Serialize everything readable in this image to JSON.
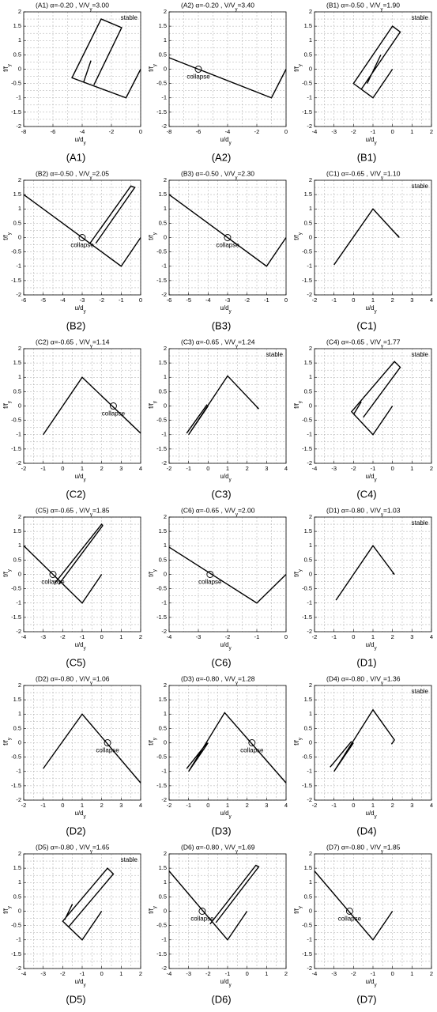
{
  "chart_data": [
    {
      "type": "line",
      "title": "(A1) α=-0.20 , V/V",
      "title_subscript": "y",
      "title_value": "=3.00",
      "xlabel": "u/d",
      "ylabel": "f/f",
      "label_subscript": "y",
      "caption": "(A1)",
      "xlim": [
        -8,
        0
      ],
      "xticks": [
        -8,
        -6,
        -4,
        -2,
        0
      ],
      "ylim": [
        -2,
        2
      ],
      "yticks": [
        -2,
        -1.5,
        -1,
        -0.5,
        0,
        0.5,
        1,
        1.5,
        2
      ],
      "grid": true,
      "color": "#000000",
      "x": [
        0,
        -1,
        -4.7,
        -2.7,
        -1.3,
        -3.2,
        null,
        -3.4,
        -3.9
      ],
      "y": [
        0,
        -1,
        -0.3,
        1.75,
        1.45,
        -0.55,
        null,
        0.3,
        -0.45
      ],
      "annotation": "stable"
    },
    {
      "type": "line",
      "title": "(A2) α=-0.20 , V/V",
      "title_subscript": "y",
      "title_value": "=3.40",
      "xlabel": "u/d",
      "ylabel": "f/f",
      "label_subscript": "y",
      "caption": "(A2)",
      "xlim": [
        -8,
        0
      ],
      "xticks": [
        -8,
        -6,
        -4,
        -2,
        0
      ],
      "ylim": [
        -2,
        2
      ],
      "yticks": [
        -2,
        -1.5,
        -1,
        -0.5,
        0,
        0.5,
        1,
        1.5,
        2
      ],
      "grid": true,
      "color": "#000000",
      "x": [
        -8,
        -1,
        0
      ],
      "y": [
        0.4,
        -1,
        0
      ],
      "annotation": "collapse",
      "marker_x": -6,
      "marker_y": 0
    },
    {
      "type": "line",
      "title": "(B1) α=-0.50 , V/V",
      "title_subscript": "y",
      "title_value": "=1.90",
      "xlabel": "u/d",
      "ylabel": "f/f",
      "label_subscript": "y",
      "caption": "(B1)",
      "xlim": [
        -4,
        2
      ],
      "xticks": [
        -4,
        -3,
        -2,
        -1,
        0,
        1,
        2
      ],
      "ylim": [
        -2,
        2
      ],
      "yticks": [
        -2,
        -1.5,
        -1,
        -0.5,
        0,
        0.5,
        1,
        1.5,
        2
      ],
      "grid": true,
      "color": "#000000",
      "x": [
        0,
        -1,
        -2,
        0,
        0.4,
        -1.6,
        null,
        -0.6,
        -1.3
      ],
      "y": [
        0,
        -1,
        -0.5,
        1.5,
        1.3,
        -0.7,
        null,
        0.5,
        -0.5
      ],
      "annotation": "stable"
    },
    {
      "type": "line",
      "title": "(B2) α=-0.50 , V/V",
      "title_subscript": "y",
      "title_value": "=2.05",
      "xlabel": "u/d",
      "ylabel": "f/f",
      "label_subscript": "y",
      "caption": "(B2)",
      "xlim": [
        -6,
        0
      ],
      "xticks": [
        -6,
        -5,
        -4,
        -3,
        -2,
        -1,
        0
      ],
      "ylim": [
        -2,
        2
      ],
      "yticks": [
        -2,
        -1.5,
        -1,
        -0.5,
        0,
        0.5,
        1,
        1.5,
        2
      ],
      "grid": true,
      "color": "#000000",
      "x": [
        -6,
        -1,
        0,
        null,
        -2.6,
        -0.5,
        -0.3,
        -2.3
      ],
      "y": [
        1.5,
        -1,
        0,
        null,
        -0.2,
        1.8,
        1.75,
        -0.2
      ],
      "annotation": "collapse",
      "marker_x": -3,
      "marker_y": 0
    },
    {
      "type": "line",
      "title": "(B3) α=-0.50 , V/V",
      "title_subscript": "y",
      "title_value": "=2.30",
      "xlabel": "u/d",
      "ylabel": "f/f",
      "label_subscript": "y",
      "caption": "(B3)",
      "xlim": [
        -6,
        0
      ],
      "xticks": [
        -6,
        -5,
        -4,
        -3,
        -2,
        -1,
        0
      ],
      "ylim": [
        -2,
        2
      ],
      "yticks": [
        -2,
        -1.5,
        -1,
        -0.5,
        0,
        0.5,
        1,
        1.5,
        2
      ],
      "grid": true,
      "color": "#000000",
      "x": [
        -6,
        -1,
        0
      ],
      "y": [
        1.5,
        -1,
        0
      ],
      "annotation": "collapse",
      "marker_x": -3,
      "marker_y": 0
    },
    {
      "type": "line",
      "title": "(C1) α=-0.65 , V/V",
      "title_subscript": "y",
      "title_value": "=1.10",
      "xlabel": "u/d",
      "ylabel": "f/f",
      "label_subscript": "y",
      "caption": "(C1)",
      "xlim": [
        -2,
        4
      ],
      "xticks": [
        -2,
        -1,
        0,
        1,
        2,
        3,
        4
      ],
      "ylim": [
        -2,
        2
      ],
      "yticks": [
        -2,
        -1.5,
        -1,
        -0.5,
        0,
        0.5,
        1,
        1.5,
        2
      ],
      "grid": true,
      "color": "#000000",
      "x": [
        -1,
        1,
        2.35,
        2.25
      ],
      "y": [
        -0.95,
        1,
        0,
        0.1
      ],
      "annotation": "stable"
    },
    {
      "type": "line",
      "title": "(C2) α=-0.65 , V/V",
      "title_subscript": "y",
      "title_value": "=1.14",
      "xlabel": "u/d",
      "ylabel": "f/f",
      "label_subscript": "y",
      "caption": "(C2)",
      "xlim": [
        -2,
        4
      ],
      "xticks": [
        -2,
        -1,
        0,
        1,
        2,
        3,
        4
      ],
      "ylim": [
        -2,
        2
      ],
      "yticks": [
        -2,
        -1.5,
        -1,
        -0.5,
        0,
        0.5,
        1,
        1.5,
        2
      ],
      "grid": true,
      "color": "#000000",
      "x": [
        -1,
        1,
        4
      ],
      "y": [
        -1,
        1,
        -0.95
      ],
      "annotation": "collapse",
      "marker_x": 2.6,
      "marker_y": 0
    },
    {
      "type": "line",
      "title": "(C3) α=-0.65 , V/V",
      "title_subscript": "y",
      "title_value": "=1.24",
      "xlabel": "u/d",
      "ylabel": "f/f",
      "label_subscript": "y",
      "caption": "(C3)",
      "xlim": [
        -2,
        4
      ],
      "xticks": [
        -2,
        -1,
        0,
        1,
        2,
        3,
        4
      ],
      "ylim": [
        -2,
        2
      ],
      "yticks": [
        -2,
        -1.5,
        -1,
        -0.5,
        0,
        0.5,
        1,
        1.5,
        2
      ],
      "grid": true,
      "color": "#000000",
      "x": [
        0,
        -1,
        1,
        2.6,
        2.5,
        null,
        -1.1,
        -0.05
      ],
      "y": [
        0,
        -1,
        1.05,
        -0.1,
        -0.05,
        null,
        -0.95,
        0.05
      ],
      "annotation": "stable"
    },
    {
      "type": "line",
      "title": "(C4) α=-0.65 , V/V",
      "title_subscript": "y",
      "title_value": "=1.77",
      "xlabel": "u/d",
      "ylabel": "f/f",
      "label_subscript": "y",
      "caption": "(C4)",
      "xlim": [
        -4,
        2
      ],
      "xticks": [
        -4,
        -3,
        -2,
        -1,
        0,
        1,
        2
      ],
      "ylim": [
        -2,
        2
      ],
      "yticks": [
        -2,
        -1.5,
        -1,
        -0.5,
        0,
        0.5,
        1,
        1.5,
        2
      ],
      "grid": true,
      "color": "#000000",
      "x": [
        0,
        -1,
        -2.1,
        0.1,
        0.4,
        -1.5,
        null,
        -1.6,
        -2
      ],
      "y": [
        0,
        -1,
        -0.2,
        1.55,
        1.35,
        -0.4,
        null,
        0.15,
        -0.3
      ],
      "annotation": "stable"
    },
    {
      "type": "line",
      "title": "(C5) α=-0.65 , V/V",
      "title_subscript": "y",
      "title_value": "=1.85",
      "xlabel": "u/d",
      "ylabel": "f/f",
      "label_subscript": "y",
      "caption": "(C5)",
      "xlim": [
        -4,
        2
      ],
      "xticks": [
        -4,
        -3,
        -2,
        -1,
        0,
        1,
        2
      ],
      "ylim": [
        -2,
        2
      ],
      "yticks": [
        -2,
        -1.5,
        -1,
        -0.5,
        0,
        0.5,
        1,
        1.5,
        2
      ],
      "grid": true,
      "color": "#000000",
      "x": [
        -4,
        -1,
        0,
        null,
        -2.4,
        0,
        0.05,
        -2.2
      ],
      "y": [
        1,
        -1,
        0,
        null,
        -0.3,
        1.75,
        1.7,
        -0.35
      ],
      "annotation": "collapse",
      "marker_x": -2.5,
      "marker_y": 0
    },
    {
      "type": "line",
      "title": "(C6) α=-0.65 , V/V",
      "title_subscript": "y",
      "title_value": "=2.00",
      "xlabel": "u/d",
      "ylabel": "f/f",
      "label_subscript": "y",
      "caption": "(C6)",
      "xlim": [
        -4,
        0
      ],
      "xticks": [
        -4,
        -3,
        -2,
        -1,
        0
      ],
      "ylim": [
        -2,
        2
      ],
      "yticks": [
        -2,
        -1.5,
        -1,
        -0.5,
        0,
        0.5,
        1,
        1.5,
        2
      ],
      "grid": true,
      "color": "#000000",
      "x": [
        -4,
        -1,
        0
      ],
      "y": [
        0.95,
        -1,
        0
      ],
      "annotation": "collapse",
      "marker_x": -2.6,
      "marker_y": 0
    },
    {
      "type": "line",
      "title": "(D1) α=-0.80 , V/V",
      "title_subscript": "y",
      "title_value": "=1.03",
      "xlabel": "u/d",
      "ylabel": "f/f",
      "label_subscript": "y",
      "caption": "(D1)",
      "xlim": [
        -2,
        4
      ],
      "xticks": [
        -2,
        -1,
        0,
        1,
        2,
        3,
        4
      ],
      "ylim": [
        -2,
        2
      ],
      "yticks": [
        -2,
        -1.5,
        -1,
        -0.5,
        0,
        0.5,
        1,
        1.5,
        2
      ],
      "grid": true,
      "color": "#000000",
      "x": [
        -0.9,
        1,
        2.1,
        2
      ],
      "y": [
        -0.9,
        1,
        0,
        0.05
      ],
      "annotation": "stable"
    },
    {
      "type": "line",
      "title": "(D2) α=-0.80 , V/V",
      "title_subscript": "y",
      "title_value": "=1.06",
      "xlabel": "u/d",
      "ylabel": "f/f",
      "label_subscript": "y",
      "caption": "(D2)",
      "xlim": [
        -2,
        4
      ],
      "xticks": [
        -2,
        -1,
        0,
        1,
        2,
        3,
        4
      ],
      "ylim": [
        -2,
        2
      ],
      "yticks": [
        -2,
        -1.5,
        -1,
        -0.5,
        0,
        0.5,
        1,
        1.5,
        2
      ],
      "grid": true,
      "color": "#000000",
      "x": [
        -1,
        1,
        4
      ],
      "y": [
        -0.9,
        1,
        -1.4
      ],
      "annotation": "collapse",
      "marker_x": 2.3,
      "marker_y": 0
    },
    {
      "type": "line",
      "title": "(D3) α=-0.80 , V/V",
      "title_subscript": "y",
      "title_value": "=1.28",
      "xlabel": "u/d",
      "ylabel": "f/f",
      "label_subscript": "y",
      "caption": "(D3)",
      "xlim": [
        -2,
        4
      ],
      "xticks": [
        -2,
        -1,
        0,
        1,
        2,
        3,
        4
      ],
      "ylim": [
        -2,
        2
      ],
      "yticks": [
        -2,
        -1.5,
        -1,
        -0.5,
        0,
        0.5,
        1,
        1.5,
        2
      ],
      "grid": true,
      "color": "#000000",
      "x": [
        0,
        -1,
        0.85,
        4,
        null,
        -1.1,
        -0.05
      ],
      "y": [
        0,
        -1,
        1.05,
        -1.4,
        null,
        -0.9,
        0
      ],
      "annotation": "collapse",
      "marker_x": 2.25,
      "marker_y": 0
    },
    {
      "type": "line",
      "title": "(D4) α=-0.80 , V/V",
      "title_subscript": "y",
      "title_value": "=1.36",
      "xlabel": "u/d",
      "ylabel": "f/f",
      "label_subscript": "y",
      "caption": "(D4)",
      "xlim": [
        -2,
        4
      ],
      "xticks": [
        -2,
        -1,
        0,
        1,
        2,
        3,
        4
      ],
      "ylim": [
        -2,
        2
      ],
      "yticks": [
        -2,
        -1.5,
        -1,
        -0.5,
        0,
        0.5,
        1,
        1.5,
        2
      ],
      "grid": true,
      "color": "#000000",
      "x": [
        0,
        -1,
        1,
        2.1,
        1.95,
        null,
        -1.2,
        -0.1
      ],
      "y": [
        0,
        -1,
        1.15,
        0.1,
        -0.05,
        null,
        -0.85,
        0.05
      ],
      "annotation": "stable"
    },
    {
      "type": "line",
      "title": "(D5) α=-0.80 , V/V",
      "title_subscript": "y",
      "title_value": "=1.65",
      "xlabel": "u/d",
      "ylabel": "f/f",
      "label_subscript": "y",
      "caption": "(D5)",
      "xlim": [
        -4,
        2
      ],
      "xticks": [
        -4,
        -3,
        -2,
        -1,
        0,
        1,
        2
      ],
      "ylim": [
        -2,
        2
      ],
      "yticks": [
        -2,
        -1.5,
        -1,
        -0.5,
        0,
        0.5,
        1,
        1.5,
        2
      ],
      "grid": true,
      "color": "#000000",
      "x": [
        0,
        -1,
        -2,
        0.3,
        0.6,
        -1.7,
        null,
        -1.5,
        -1.9
      ],
      "y": [
        0,
        -1,
        -0.35,
        1.5,
        1.3,
        -0.55,
        null,
        0.25,
        -0.3
      ],
      "annotation": "stable"
    },
    {
      "type": "line",
      "title": "(D6) α=-0.80 , V/V",
      "title_subscript": "y",
      "title_value": "=1.69",
      "xlabel": "u/d",
      "ylabel": "f/f",
      "label_subscript": "y",
      "caption": "(D6)",
      "xlim": [
        -4,
        2
      ],
      "xticks": [
        -4,
        -3,
        -2,
        -1,
        0,
        1,
        2
      ],
      "ylim": [
        -2,
        2
      ],
      "yticks": [
        -2,
        -1.5,
        -1,
        -0.5,
        0,
        0.5,
        1,
        1.5,
        2
      ],
      "grid": true,
      "color": "#000000",
      "x": [
        -4,
        -1,
        0,
        null,
        -1.9,
        0.45,
        0.6,
        -1.6
      ],
      "y": [
        1.4,
        -1,
        0,
        null,
        -0.45,
        1.6,
        1.55,
        -0.4
      ],
      "annotation": "collapse",
      "marker_x": -2.3,
      "marker_y": 0
    },
    {
      "type": "line",
      "title": "(D7) α=-0.80 , V/V",
      "title_subscript": "y",
      "title_value": "=1.85",
      "xlabel": "u/d",
      "ylabel": "f/f",
      "label_subscript": "y",
      "caption": "(D7)",
      "xlim": [
        -4,
        2
      ],
      "xticks": [
        -4,
        -3,
        -2,
        -1,
        0,
        1,
        2
      ],
      "ylim": [
        -2,
        2
      ],
      "yticks": [
        -2,
        -1.5,
        -1,
        -0.5,
        0,
        0.5,
        1,
        1.5,
        2
      ],
      "grid": true,
      "color": "#000000",
      "x": [
        -4,
        -1,
        0
      ],
      "y": [
        1.4,
        -1,
        0
      ],
      "annotation": "collapse",
      "marker_x": -2.2,
      "marker_y": 0
    }
  ]
}
